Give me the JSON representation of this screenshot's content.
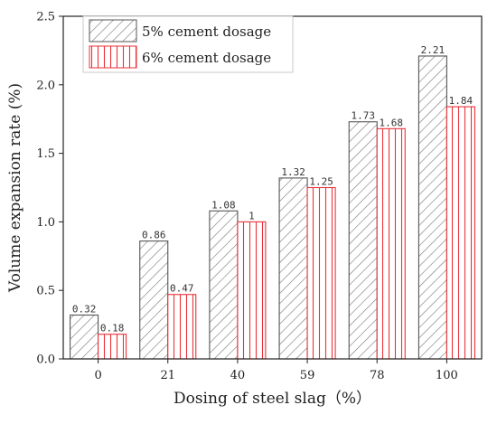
{
  "chart_data": {
    "type": "bar",
    "xlabel": "Dosing of steel slag（%）",
    "ylabel": "Volume expansion rate (%)",
    "categories": [
      "0",
      "21",
      "40",
      "59",
      "78",
      "100"
    ],
    "ylim": [
      0,
      2.5
    ],
    "yticks": [
      "0.0",
      "0.5",
      "1.0",
      "1.5",
      "2.0",
      "2.5"
    ],
    "legend_position": "top-left",
    "series": [
      {
        "name": "5% cement dosage",
        "values": [
          0.32,
          0.86,
          1.08,
          1.32,
          1.73,
          2.21
        ],
        "labels": [
          "0.32",
          "0.86",
          "1.08",
          "1.32",
          "1.73",
          "2.21"
        ],
        "color": "#555555",
        "pattern": "diagonal-hatch"
      },
      {
        "name": "6% cement dosage",
        "values": [
          0.18,
          0.47,
          1.0,
          1.25,
          1.68,
          1.84
        ],
        "labels": [
          "0.18",
          "0.47",
          "1",
          "1.25",
          "1.68",
          "1.84"
        ],
        "color": "#e8333a",
        "pattern": "vertical-lines"
      }
    ]
  }
}
